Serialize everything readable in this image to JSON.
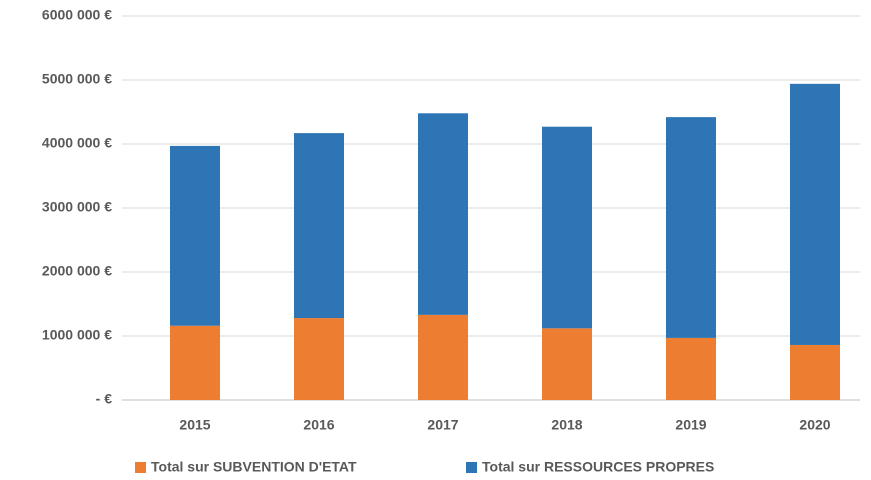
{
  "chart_data": {
    "type": "stacked_bar",
    "categories": [
      "2015",
      "2016",
      "2017",
      "2018",
      "2019",
      "2020"
    ],
    "series": [
      {
        "name": "Total sur SUBVENTION D'ETAT",
        "color": "#ed7d31",
        "values": [
          1160000,
          1280000,
          1330000,
          1120000,
          970000,
          860000
        ]
      },
      {
        "name": "Total sur RESSOURCES PROPRES",
        "color": "#2e75b6",
        "values": [
          2810000,
          2890000,
          3150000,
          3150000,
          3450000,
          4080000
        ]
      }
    ],
    "ylim": [
      0,
      6000000
    ],
    "yticks": [
      {
        "value": 0,
        "label": "-  €"
      },
      {
        "value": 1000000,
        "label": "1000 000 €"
      },
      {
        "value": 2000000,
        "label": "2000 000 €"
      },
      {
        "value": 3000000,
        "label": "3000 000 €"
      },
      {
        "value": 4000000,
        "label": "4000 000 €"
      },
      {
        "value": 5000000,
        "label": "5000 000 €"
      },
      {
        "value": 6000000,
        "label": "6000 000 €"
      }
    ],
    "grid": true,
    "legend": "bottom"
  }
}
